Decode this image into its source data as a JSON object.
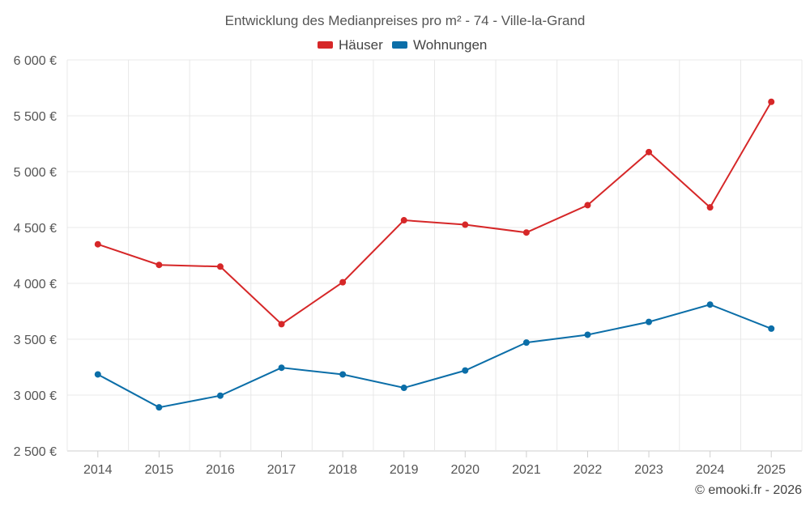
{
  "chart_data": {
    "type": "line",
    "title": "Entwicklung des Medianpreises pro m² - 74 - Ville-la-Grand",
    "categories": [
      "2014",
      "2015",
      "2016",
      "2017",
      "2018",
      "2019",
      "2020",
      "2021",
      "2022",
      "2023",
      "2024",
      "2025"
    ],
    "series": [
      {
        "name": "Häuser",
        "color": "#d62728",
        "values": [
          4350,
          4165,
          4150,
          3635,
          4010,
          4565,
          4525,
          4455,
          4700,
          5175,
          4680,
          5625
        ]
      },
      {
        "name": "Wohnungen",
        "color": "#0b6ea8",
        "values": [
          3185,
          2890,
          2995,
          3245,
          3185,
          3065,
          3220,
          3470,
          3540,
          3655,
          3810,
          3595
        ]
      }
    ],
    "ylim": [
      2500,
      6000
    ],
    "yticks": [
      6000,
      5500,
      5000,
      4500,
      4000,
      3500,
      3000,
      2500
    ],
    "ytick_labels": [
      "6 000 €",
      "5 500 €",
      "5 000 €",
      "4 500 €",
      "4 000 €",
      "3 500 €",
      "3 000 €",
      "2 500 €"
    ],
    "xlabel": "",
    "ylabel": "",
    "grid": true,
    "legend": "top-center"
  },
  "credit": "© emooki.fr - 2026"
}
